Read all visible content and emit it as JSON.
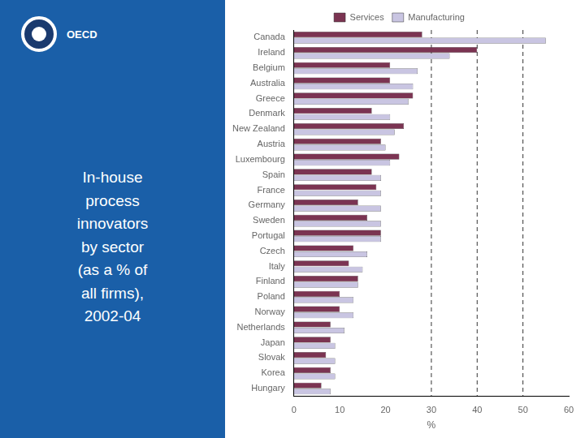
{
  "chart_data": {
    "type": "bar",
    "orientation": "horizontal",
    "title": "In-house\nprocess\ninnovators\nby sector\n(as a % of\nall firms),\n2002-04",
    "annotations": [
      "OECD"
    ],
    "categories": [
      "Canada",
      "Ireland",
      "Belgium",
      "Australia",
      "Greece",
      "Denmark",
      "New Zealand",
      "Austria",
      "Luxembourg",
      "Spain",
      "France",
      "Germany",
      "Sweden",
      "Portugal",
      "Czech",
      "Italy",
      "Finland",
      "Poland",
      "Norway",
      "Netherlands",
      "Japan",
      "Slovak",
      "Korea",
      "Hungary"
    ],
    "series": [
      {
        "name": "Services",
        "color": "#7b3452",
        "values": [
          28,
          40,
          21,
          21,
          26,
          17,
          24,
          19,
          23,
          17,
          18,
          14,
          16,
          19,
          13,
          12,
          14,
          10,
          10,
          8,
          8,
          7,
          8,
          6
        ]
      },
      {
        "name": "Manufacturing",
        "color": "#c9c5e2",
        "values": [
          55,
          34,
          27,
          26,
          25,
          21,
          22,
          20,
          21,
          19,
          19,
          19,
          19,
          19,
          16,
          15,
          14,
          13,
          13,
          11,
          9,
          9,
          9,
          8
        ]
      }
    ],
    "xlabel": "%",
    "xlim": [
      0,
      60
    ],
    "xticks": [
      0,
      10,
      20,
      30,
      40,
      50,
      60
    ],
    "reference_lines": [
      30,
      40,
      50
    ],
    "legend": "top",
    "grid": false
  }
}
